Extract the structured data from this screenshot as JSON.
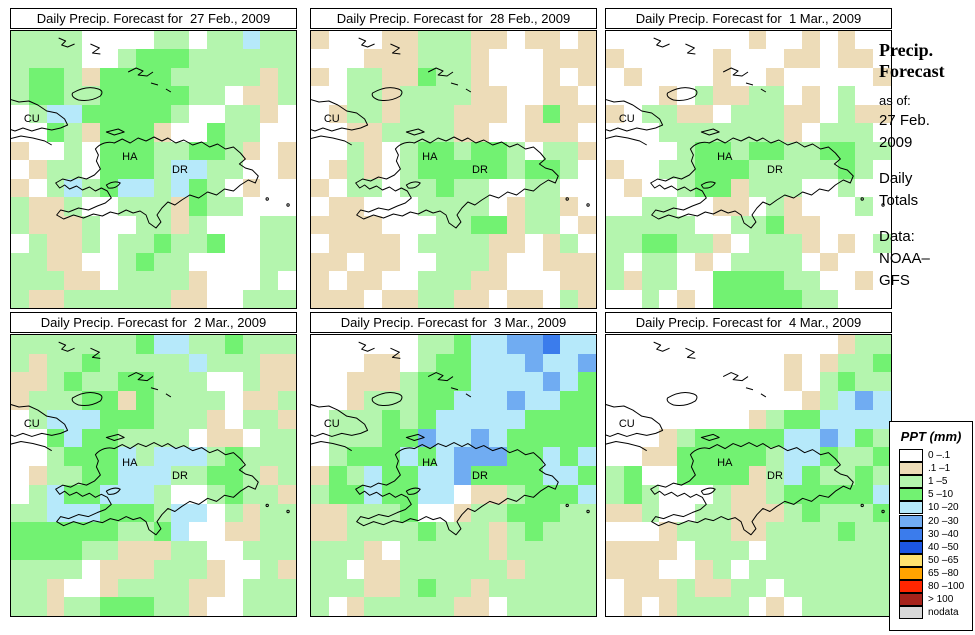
{
  "figure": {
    "panels": [
      {
        "title": "Daily Precip. Forecast for  27 Feb., 2009",
        "grid": [
          "LLLLWWWWLLWLLCLL",
          "LLLLWWLGGGLLLLLL",
          "LGGLTGGGGLLLLLTL",
          "LGGLLGGGGGLLWTTL",
          "WLCCGGGGGLWWLLTW",
          "WWGLTGGGTWWGLLWW",
          "TWWLWGGGLLGGLTWT",
          "WTLLWGGGLCCLLWWT",
          "TWLCLGCCLCGLWTWW",
          "LTTLWWLLLTGLLWWW",
          "LTTTLWWLLTLWWWLL",
          "WLTTLWLLGLLGWWLL",
          "LLTTWWLGLLWWWWLL",
          "LLLTTWLLLLTWWWLW",
          "LTTLLLLLLTTWWLLL"
        ]
      },
      {
        "title": "Daily Precip. Forecast for  28 Feb., 2009",
        "grid": [
          "TWWWTTLLLTTWTTWT",
          "WWWTTTLLLTWWWTTT",
          "TWLLTTGLLTWWWTWT",
          "WWLLTLLLLTTWWTTW",
          "WTLLTLLLTTTWTGTT",
          "WWTTLLLLTTWWTTTW",
          "WWLTWLGGLGGLWLLT",
          "WTLTWLGGGGGLGGLW",
          "TWLLWLLGLLWWLLWW",
          "WTTWWWLLLLWTLLTW",
          "TTTTWWWLLGGTLLWT",
          "WTTTTWLLLLTTWTLW",
          "TTWTTWWLLLTWWTTT",
          "TWTTWWLLLTTWWWTT",
          "TTTWTTLLTTWTTWLT"
        ]
      },
      {
        "title": "Daily Precip. Forecast for  1 Mar., 2009",
        "grid": [
          "WWWWWWWWTWWTWTWW",
          "TWWWWWTWWWTTWTTW",
          "WTWWWWTWWTWWWWWT",
          "WWWTWLTTLLWTWLWW",
          "TWLLTTWLLLTTWLTT",
          "WWWLLLLLLLTWLLLW",
          "WWWWLGGLGGLLGGLL",
          "TWWLLGGGLLLLLGLW",
          "WTWWLGGTLLLWWLWW",
          "WWLLWWTTWLTWWWLW",
          "LLLLLWWLLGTTWWWW",
          "LLGGLLTWLLLTWTWL",
          "LWLLWTWLLLLWTWWW",
          "LTLLWWGGGGLLWWTW",
          "WWLWTWGGGGGLLWWW"
        ]
      },
      {
        "title": "Daily Precip. Forecast for  2 Mar., 2009",
        "grid": [
          "LLLLLLLGCCLLGLLL",
          "LTLLGLLLLLCLLLTT",
          "TTLGLLGGLLLWWLTT",
          "TLLLGGTGLLLLWTTL",
          "WLCCCGGGLLLTWLLT",
          "WWGCGGLLLLWTTWLL",
          "WWLGGGCLCCCLGLLL",
          "WTLLGGCCCLLGGLTL",
          "WLCGGCCCLWWLGLLT",
          "LLCCCGGGLCCWLTLL",
          "GGGGGGLLGCWWTTLL",
          "GGGGLLTTTLLWWLLL",
          "LLLLWTTTLLLTWWLT",
          "LLTWWTLLLLTTWLLL",
          "LLTLLGGGLLTWWLLL"
        ]
      },
      {
        "title": "Daily Precip. Forecast for  3 Mar., 2009",
        "grid": [
          "WWWWWWLLGCCBBDCC",
          "WWWTTWLGGCCCBCCB",
          "WWTTTLGGGCCCCBCG",
          "WWTLLLGGCCCBCCGG",
          "WLLLGLGCCCCCGGGG",
          "WLLLGGBCCBCGGGGG",
          "WLGGGCGCBBBGGCGC",
          "TGLCGGCCBGGGGCCG",
          "LGGCGGCCWTTLGGGC",
          "TTLLLGWWTLLGGGLL",
          "TTLLLLGLLLTLGLLL",
          "LLLTWLLLLLTLLLLL",
          "LLWTTLLLLLLTLLLL",
          "LLLTTLGLLTLLLLLL",
          "LWTLLLLLTTWLLLLL"
        ]
      },
      {
        "title": "Daily Precip. Forecast for  4 Mar., 2009",
        "grid": [
          "WWWWWWWWWWWWWTLL",
          "WWWWWWWWWWTWTLLG",
          "WWWWWWWWWWTWLGLL",
          "WWWWWWWWWWWTLCBC",
          "WWWWWWWWTLGGCCCC",
          "WWWTLGGGGGCCBCGL",
          "WWTTGGGGGLCCGLLG",
          "LGWWGGGGTLCGLLGL",
          "LGLWWWLTTLGGGGGC",
          "TTLWWLLTTTLGLLLG",
          "WWWTLLLTTLLLLGLL",
          "TTTTWLLLWLLLLLLL",
          "TTTWWTLWLLLLLLLL",
          "WTTTLTTLLWLLLLLL",
          "WTWTLLLLWTWLLLLL"
        ]
      }
    ],
    "map_labels": {
      "cuba": "CU",
      "haiti": "HA",
      "dominican_republic": "DR"
    },
    "sidebar": {
      "title_line1": "Precip.",
      "title_line2": "Forecast",
      "as_of_label": "as of:",
      "as_of_date_line1": "27 Feb.",
      "as_of_date_line2": "2009",
      "totals_line1": "Daily",
      "totals_line2": "Totals",
      "data_label": "Data:",
      "data_source_line1": "NOAA–",
      "data_source_line2": "GFS"
    },
    "legend": {
      "title": "PPT (mm)",
      "items": [
        {
          "label": "0 –.1",
          "code": "W"
        },
        {
          "label": ".1 –1",
          "code": "T"
        },
        {
          "label": "1 –5",
          "code": "L"
        },
        {
          "label": "5 –10",
          "code": "G"
        },
        {
          "label": "10 –20",
          "code": "C"
        },
        {
          "label": "20 –30",
          "code": "B"
        },
        {
          "label": "30 –40",
          "code": "D"
        },
        {
          "label": "40 –50",
          "code": "E"
        },
        {
          "label": "50 –65",
          "code": "Y"
        },
        {
          "label": "65 –80",
          "code": "O"
        },
        {
          "label": "80 –100",
          "code": "R"
        },
        {
          "label": "> 100",
          "code": "K"
        },
        {
          "label": "nodata",
          "code": "N"
        }
      ]
    },
    "palette": {
      "W": "#FFFFFF",
      "T": "#EDDCB8",
      "L": "#B4F5AE",
      "G": "#72F272",
      "C": "#B6E9FA",
      "B": "#70ACF2",
      "D": "#3B7CEC",
      "E": "#1C56E2",
      "Y": "#FFE26E",
      "O": "#FFA400",
      "R": "#FF2600",
      "K": "#A6231B",
      "N": "#D8D8D8"
    }
  }
}
